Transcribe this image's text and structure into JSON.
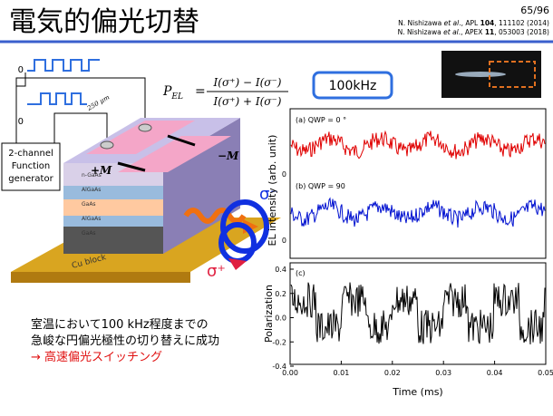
{
  "header": {
    "title": "電気的偏光切替",
    "page": "65/96",
    "refs": [
      {
        "authors": "N. Nishizawa ",
        "etal": "et al",
        "rest": "., APL ",
        "vol": "104",
        "tail": ", 111102 (2014)"
      },
      {
        "authors": "N. Nishizawa ",
        "etal": "et al",
        "rest": "., APEX ",
        "vol": "11",
        "tail": ", 053003 (2018)"
      }
    ]
  },
  "formula": {
    "lhs": "P",
    "lhs_sub": "EL",
    "equals": "=",
    "numerator": "I(σ⁺) − I(σ⁻)",
    "denominator": "I(σ⁺) + I(σ⁻)"
  },
  "badge": "100kHz",
  "device": {
    "generator": [
      "2-channel",
      "Function",
      "generator"
    ],
    "plus_m": "+M",
    "minus_m": "−M",
    "sigma_minus": "σ⁻",
    "sigma_plus": "σ⁺",
    "width": "250 μm",
    "zero_top": "0",
    "zero_mid": "0",
    "base": "Cu block",
    "layers": [
      "n-GaAs",
      "AlGaAs",
      "GaAs",
      "AlGaAs",
      "GaAs"
    ]
  },
  "plot": {
    "y_label_top": "EL intensity (arb. unit)",
    "panel_a": "(a) QWP = 0 °",
    "panel_b": "(b) QWP = 90",
    "zero_a": "0",
    "zero_b": "0",
    "y_label_bottom": "Polarization",
    "panel_c": "(c)",
    "y_ticks": [
      "0.4",
      "0.2",
      "0.0",
      "-0.2",
      "-0.4"
    ],
    "x_ticks": [
      "0.00",
      "0.01",
      "0.02",
      "0.03",
      "0.04",
      "0.05"
    ],
    "x_label": "Time (ms)"
  },
  "body": {
    "lines": [
      "室温において100 kHz程度までの",
      "急峻な円偏光極性の切り替えに成功"
    ],
    "highlight": "→ 高速偏光スイッチング"
  }
}
